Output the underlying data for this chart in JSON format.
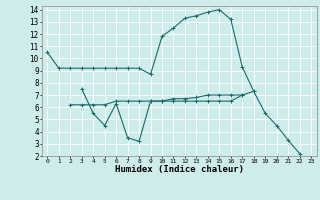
{
  "xlabel": "Humidex (Indice chaleur)",
  "bg_color": "#ceecea",
  "line_color": "#1a6b6b",
  "grid_color": "#ffffff",
  "xlim": [
    -0.5,
    23.5
  ],
  "ylim": [
    2,
    14.3
  ],
  "xticks": [
    0,
    1,
    2,
    3,
    4,
    5,
    6,
    7,
    8,
    9,
    10,
    11,
    12,
    13,
    14,
    15,
    16,
    17,
    18,
    19,
    20,
    21,
    22,
    23
  ],
  "yticks": [
    2,
    3,
    4,
    5,
    6,
    7,
    8,
    9,
    10,
    11,
    12,
    13,
    14
  ],
  "series1_x": [
    0,
    1,
    2,
    3,
    4,
    5,
    6,
    7,
    8,
    9,
    10,
    11,
    12,
    13,
    14,
    15,
    16,
    17,
    18
  ],
  "series1_y": [
    10.5,
    9.2,
    9.2,
    9.2,
    9.2,
    9.2,
    9.2,
    9.2,
    9.2,
    8.7,
    11.8,
    12.5,
    13.3,
    13.5,
    13.8,
    14.0,
    13.2,
    9.3,
    7.3
  ],
  "series2_x": [
    3,
    4,
    5,
    6,
    7,
    8,
    9,
    10
  ],
  "series2_y": [
    7.5,
    5.5,
    4.5,
    6.3,
    3.5,
    3.2,
    6.5,
    6.5
  ],
  "series3_x": [
    2,
    3,
    4,
    5,
    6,
    7,
    8,
    9,
    10,
    11,
    12,
    13,
    14,
    15,
    16,
    17
  ],
  "series3_y": [
    6.2,
    6.2,
    6.2,
    6.2,
    6.5,
    6.5,
    6.5,
    6.5,
    6.5,
    6.7,
    6.7,
    6.8,
    7.0,
    7.0,
    7.0,
    7.0
  ],
  "series4_x": [
    10,
    11,
    12,
    13,
    14,
    15,
    16,
    17,
    18,
    19,
    20,
    21,
    22
  ],
  "series4_y": [
    6.5,
    6.5,
    6.5,
    6.5,
    6.5,
    6.5,
    6.5,
    7.0,
    7.3,
    5.5,
    4.5,
    3.3,
    2.2
  ]
}
